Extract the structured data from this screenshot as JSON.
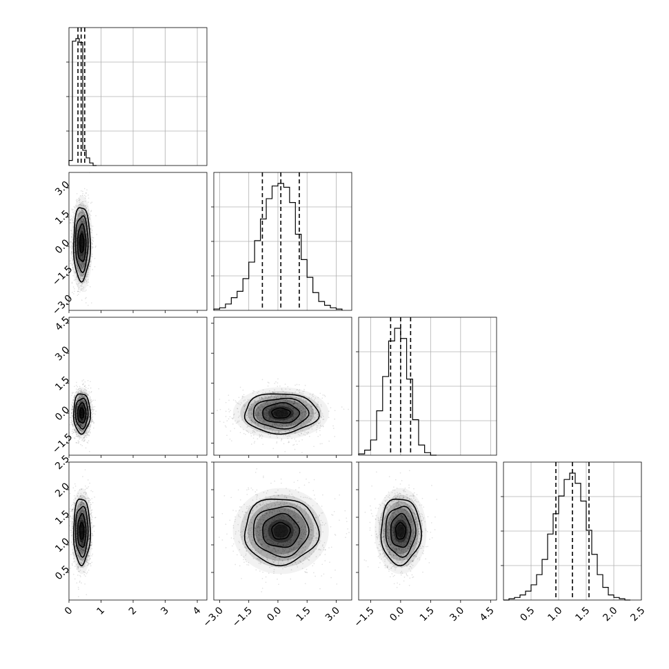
{
  "chart_data": {
    "type": "corner",
    "grid": true,
    "variables": [
      {
        "index": 0,
        "range": [
          0.0,
          4.3
        ],
        "ticks": [
          0,
          1,
          2,
          3,
          4
        ],
        "tick_labels": [
          "0",
          "1",
          "2",
          "3",
          "4"
        ],
        "mean": 0.4,
        "std": 0.13,
        "quantiles": [
          0.28,
          0.38,
          0.49
        ]
      },
      {
        "index": 1,
        "range": [
          -3.3,
          3.8
        ],
        "ticks": [
          -3.0,
          -1.5,
          0.0,
          1.5,
          3.0
        ],
        "tick_labels": [
          "−3.0",
          "−1.5",
          "0.0",
          "1.5",
          "3.0"
        ],
        "mean": 0.15,
        "std": 0.95,
        "quantiles": [
          -0.8,
          0.15,
          1.1
        ]
      },
      {
        "index": 2,
        "range": [
          -2.1,
          4.8
        ],
        "ticks": [
          -1.5,
          0.0,
          1.5,
          3.0,
          4.5
        ],
        "tick_labels": [
          "−1.5",
          "0.0",
          "1.5",
          "3.0",
          "4.5"
        ],
        "mean": 0.0,
        "std": 0.5,
        "quantiles": [
          -0.5,
          0.0,
          0.5
        ]
      },
      {
        "index": 3,
        "range": [
          0.0,
          2.5
        ],
        "ticks": [
          0.5,
          1.0,
          1.5,
          2.0,
          2.5
        ],
        "tick_labels": [
          "0.5",
          "1.0",
          "1.5",
          "2.0",
          "2.5"
        ],
        "mean": 1.25,
        "std": 0.3,
        "quantiles": [
          0.95,
          1.25,
          1.55
        ]
      }
    ],
    "y_tick_labels": {
      "1": [
        "−3.0",
        "−1.5",
        "0.0",
        "1.5",
        "3.0"
      ],
      "2": [
        "−1.5",
        "0.0",
        "1.5",
        "3.0",
        "4.5"
      ],
      "3": [
        "0.5",
        "1.0",
        "1.5",
        "2.0",
        "2.5"
      ]
    },
    "marginals": [
      {
        "var": 0,
        "bin_edges": [
          0.0,
          0.1075,
          0.215,
          0.3225,
          0.43,
          0.5375,
          0.645,
          0.7525,
          0.86
        ],
        "counts": [
          0.04,
          0.98,
          1.0,
          0.97,
          0.12,
          0.06,
          0.02,
          0.0
        ]
      },
      {
        "var": 1,
        "bin_edges": [
          -3.3,
          -3.0,
          -2.7,
          -2.4,
          -2.1,
          -1.8,
          -1.5,
          -1.2,
          -0.9,
          -0.6,
          -0.3,
          0.0,
          0.3,
          0.6,
          0.9,
          1.2,
          1.5,
          1.8,
          2.1,
          2.4,
          2.7,
          3.0,
          3.3
        ],
        "counts": [
          0.01,
          0.02,
          0.05,
          0.1,
          0.15,
          0.25,
          0.38,
          0.55,
          0.72,
          0.88,
          0.98,
          1.0,
          0.97,
          0.85,
          0.6,
          0.4,
          0.26,
          0.14,
          0.07,
          0.04,
          0.02,
          0.01
        ]
      },
      {
        "var": 2,
        "bin_edges": [
          -2.1,
          -1.8,
          -1.5,
          -1.2,
          -0.9,
          -0.6,
          -0.3,
          0.0,
          0.3,
          0.6,
          0.9,
          1.2,
          1.5,
          1.8
        ],
        "counts": [
          0.01,
          0.04,
          0.12,
          0.35,
          0.62,
          0.9,
          1.0,
          0.92,
          0.6,
          0.28,
          0.08,
          0.02,
          0.0
        ]
      },
      {
        "var": 3,
        "bin_edges": [
          0.0,
          0.1,
          0.2,
          0.3,
          0.4,
          0.5,
          0.6,
          0.7,
          0.8,
          0.9,
          1.0,
          1.1,
          1.2,
          1.3,
          1.4,
          1.5,
          1.6,
          1.7,
          1.8,
          1.9,
          2.0,
          2.1,
          2.2,
          2.3
        ],
        "counts": [
          0.0,
          0.01,
          0.02,
          0.04,
          0.07,
          0.12,
          0.2,
          0.32,
          0.52,
          0.68,
          0.82,
          0.95,
          1.0,
          0.92,
          0.78,
          0.55,
          0.36,
          0.2,
          0.1,
          0.04,
          0.02,
          0.01,
          0.0
        ]
      }
    ],
    "pairs": [
      {
        "x": 0,
        "y": 1,
        "center": [
          0.4,
          0.15
        ],
        "sigma": [
          0.13,
          0.95
        ],
        "rho": 0.0
      },
      {
        "x": 0,
        "y": 2,
        "center": [
          0.4,
          0.0
        ],
        "sigma": [
          0.13,
          0.5
        ],
        "rho": 0.0
      },
      {
        "x": 1,
        "y": 2,
        "center": [
          0.15,
          0.0
        ],
        "sigma": [
          0.95,
          0.5
        ],
        "rho": 0.0
      },
      {
        "x": 0,
        "y": 3,
        "center": [
          0.4,
          1.25
        ],
        "sigma": [
          0.13,
          0.3
        ],
        "rho": 0.0
      },
      {
        "x": 1,
        "y": 3,
        "center": [
          0.15,
          1.25
        ],
        "sigma": [
          0.95,
          0.3
        ],
        "rho": 0.0
      },
      {
        "x": 2,
        "y": 3,
        "center": [
          0.0,
          1.25
        ],
        "sigma": [
          0.5,
          0.3
        ],
        "rho": 0.0
      }
    ],
    "contour_levels_sigma": [
      0.5,
      1.0,
      1.5,
      2.0
    ],
    "points_per_panel": 1500
  }
}
